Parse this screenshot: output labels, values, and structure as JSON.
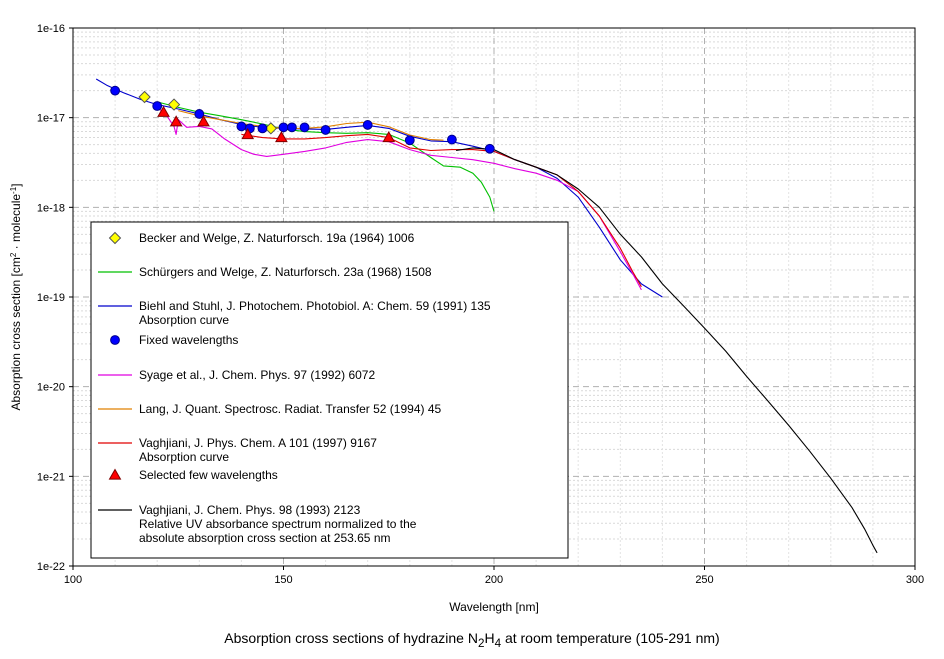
{
  "caption": {
    "prefix": "Absorption cross sections of hydrazine N",
    "sub1": "2",
    "mid": "H",
    "sub2": "4",
    "suffix": " at room temperature (105-291 nm)"
  },
  "chart_data": {
    "type": "line",
    "xlabel": "Wavelength [nm]",
    "ylabel": "Absorption cross section [cm",
    "ylabel_sup1": "2",
    "ylabel_mid": " · molecule",
    "ylabel_sup2": "-1",
    "ylabel_end": "]",
    "xlim": [
      100,
      300
    ],
    "ylim": [
      1e-22,
      1e-16
    ],
    "yscale": "log",
    "grid": true,
    "legend_placement": "lower-left",
    "x_ticks": [
      {
        "value": 100,
        "label": "100"
      },
      {
        "value": 150,
        "label": "150"
      },
      {
        "value": 200,
        "label": "200"
      },
      {
        "value": 250,
        "label": "250"
      },
      {
        "value": 300,
        "label": "300"
      }
    ],
    "y_ticks": [
      {
        "exp": -16,
        "label": "1e-16"
      },
      {
        "exp": -17,
        "label": "1e-17"
      },
      {
        "exp": -18,
        "label": "1e-18"
      },
      {
        "exp": -19,
        "label": "1e-19"
      },
      {
        "exp": -20,
        "label": "1e-20"
      },
      {
        "exp": -21,
        "label": "1e-21"
      },
      {
        "exp": -22,
        "label": "1e-22"
      }
    ],
    "series": [
      {
        "legend": [
          "Becker and Welge, Z. Naturforsch. 19a (1964) 1006"
        ],
        "kind": "markers",
        "marker": "diamond",
        "color": "#ffff00",
        "stroke": "#555555",
        "points": [
          [
            117,
            1.7e-17
          ],
          [
            124,
            1.4e-17
          ],
          [
            147,
            7.6e-18
          ]
        ]
      },
      {
        "legend": [
          "Schürgers and Welge, Z. Naturforsch. 23a (1968) 1508"
        ],
        "kind": "line",
        "color": "#00c000",
        "points": [
          [
            120,
            1.5e-17
          ],
          [
            125,
            1.3e-17
          ],
          [
            130,
            1.15e-17
          ],
          [
            135,
            1.05e-17
          ],
          [
            140,
            9.5e-18
          ],
          [
            145,
            8.5e-18
          ],
          [
            150,
            7.5e-18
          ],
          [
            155,
            7e-18
          ],
          [
            160,
            6.8e-18
          ],
          [
            165,
            6.7e-18
          ],
          [
            170,
            6.8e-18
          ],
          [
            175,
            6.5e-18
          ],
          [
            180,
            5.2e-18
          ],
          [
            185,
            3.6e-18
          ],
          [
            188,
            2.9e-18
          ],
          [
            192,
            2.8e-18
          ],
          [
            195,
            2.4e-18
          ],
          [
            197,
            1.9e-18
          ],
          [
            199,
            1.3e-18
          ],
          [
            200,
            9e-19
          ]
        ]
      },
      {
        "legend": [
          "Biehl and Stuhl, J. Photochem. Photobiol. A: Chem. 59 (1991) 135",
          "Absorption curve"
        ],
        "kind": "line",
        "color": "#0000cc",
        "points": [
          [
            105.5,
            2.7e-17
          ],
          [
            108,
            2.3e-17
          ],
          [
            112,
            1.9e-17
          ],
          [
            116,
            1.6e-17
          ],
          [
            120,
            1.4e-17
          ],
          [
            125,
            1.25e-17
          ],
          [
            130,
            1.1e-17
          ],
          [
            135,
            9.5e-18
          ],
          [
            140,
            8.4e-18
          ],
          [
            145,
            7.8e-18
          ],
          [
            150,
            7.6e-18
          ],
          [
            155,
            7.5e-18
          ],
          [
            160,
            7.4e-18
          ],
          [
            165,
            7.8e-18
          ],
          [
            170,
            8.2e-18
          ],
          [
            175,
            7.6e-18
          ],
          [
            180,
            6.2e-18
          ],
          [
            185,
            5.5e-18
          ],
          [
            190,
            5.4e-18
          ],
          [
            195,
            4.8e-18
          ],
          [
            200,
            4.2e-18
          ],
          [
            205,
            3.4e-18
          ],
          [
            210,
            2.8e-18
          ],
          [
            215,
            2.1e-18
          ],
          [
            220,
            1.3e-18
          ],
          [
            225,
            6e-19
          ],
          [
            230,
            2.6e-19
          ],
          [
            235,
            1.4e-19
          ],
          [
            240,
            1e-19
          ]
        ]
      },
      {
        "legend": [
          "Fixed wavelengths"
        ],
        "kind": "markers",
        "marker": "circle",
        "color": "#0000ff",
        "stroke": "#00008b",
        "points": [
          [
            110,
            2e-17
          ],
          [
            120,
            1.35e-17
          ],
          [
            130,
            1.1e-17
          ],
          [
            140,
            8e-18
          ],
          [
            142,
            7.6e-18
          ],
          [
            145,
            7.6e-18
          ],
          [
            150,
            7.8e-18
          ],
          [
            152,
            7.8e-18
          ],
          [
            155,
            7.8e-18
          ],
          [
            160,
            7.3e-18
          ],
          [
            170,
            8.3e-18
          ],
          [
            180,
            5.6e-18
          ],
          [
            190,
            5.7e-18
          ],
          [
            199,
            4.5e-18
          ]
        ]
      },
      {
        "legend": [
          "Syage et al., J. Chem. Phys. 97 (1992) 6072"
        ],
        "kind": "line",
        "color": "#e000e0",
        "points": [
          [
            120,
            1.3e-17
          ],
          [
            122,
            1.1e-17
          ],
          [
            124,
            8e-18
          ],
          [
            124.5,
            6.5e-18
          ],
          [
            125,
            9.5e-18
          ],
          [
            127,
            7.8e-18
          ],
          [
            130,
            8e-18
          ],
          [
            133,
            7.5e-18
          ],
          [
            136,
            5.8e-18
          ],
          [
            140,
            4.4e-18
          ],
          [
            143,
            3.9e-18
          ],
          [
            146,
            3.7e-18
          ],
          [
            150,
            3.9e-18
          ],
          [
            155,
            4.2e-18
          ],
          [
            160,
            4.6e-18
          ],
          [
            165,
            5.3e-18
          ],
          [
            170,
            5.7e-18
          ],
          [
            175,
            5.4e-18
          ],
          [
            180,
            4.4e-18
          ],
          [
            185,
            3.8e-18
          ],
          [
            190,
            3.6e-18
          ],
          [
            195,
            3.4e-18
          ],
          [
            200,
            3.1e-18
          ],
          [
            205,
            2.7e-18
          ],
          [
            210,
            2.4e-18
          ],
          [
            215,
            2e-18
          ],
          [
            220,
            1.5e-18
          ],
          [
            225,
            8e-19
          ],
          [
            230,
            3.2e-19
          ],
          [
            233,
            1.8e-19
          ],
          [
            235,
            1.2e-19
          ]
        ]
      },
      {
        "legend": [
          "Lang, J. Quant. Spectrosc. Radiat. Transfer 52 (1994) 45"
        ],
        "kind": "line",
        "color": "#e08000",
        "points": [
          [
            125,
            1.2e-17
          ],
          [
            130,
            1.05e-17
          ],
          [
            135,
            9.5e-18
          ],
          [
            140,
            8.6e-18
          ],
          [
            145,
            8e-18
          ],
          [
            150,
            7.6e-18
          ],
          [
            155,
            7.6e-18
          ],
          [
            160,
            7.9e-18
          ],
          [
            165,
            8.6e-18
          ],
          [
            170,
            8.9e-18
          ],
          [
            175,
            7.9e-18
          ],
          [
            180,
            6.4e-18
          ],
          [
            185,
            5.7e-18
          ],
          [
            188,
            5.6e-18
          ]
        ]
      },
      {
        "legend": [
          "Vaghjiani, J. Phys. Chem. A 101 (1997) 9167",
          "Absorption curve"
        ],
        "kind": "line",
        "color": "#e00000",
        "points": [
          [
            140,
            6.5e-18
          ],
          [
            145,
            6e-18
          ],
          [
            150,
            5.8e-18
          ],
          [
            155,
            5.8e-18
          ],
          [
            160,
            6e-18
          ],
          [
            165,
            6.3e-18
          ],
          [
            170,
            6.5e-18
          ],
          [
            175,
            6e-18
          ],
          [
            180,
            4.6e-18
          ],
          [
            185,
            4.3e-18
          ],
          [
            190,
            4.4e-18
          ],
          [
            195,
            4.4e-18
          ],
          [
            200,
            4.2e-18
          ],
          [
            205,
            3.4e-18
          ],
          [
            210,
            2.8e-18
          ],
          [
            215,
            2.3e-18
          ],
          [
            220,
            1.5e-18
          ],
          [
            225,
            8e-19
          ],
          [
            230,
            3.5e-19
          ],
          [
            233,
            1.9e-19
          ],
          [
            235,
            1.3e-19
          ]
        ]
      },
      {
        "legend": [
          "Selected few wavelengths"
        ],
        "kind": "markers",
        "marker": "triangle",
        "color": "#ff0000",
        "stroke": "#800000",
        "points": [
          [
            121.5,
            1.15e-17
          ],
          [
            124.5,
            9e-18
          ],
          [
            131,
            9e-18
          ],
          [
            141.5,
            6.5e-18
          ],
          [
            149.5,
            6e-18
          ],
          [
            175,
            6e-18
          ]
        ]
      },
      {
        "legend": [
          "Vaghjiani, J. Chem. Phys. 98 (1993) 2123",
          "Relative UV absorbance spectrum normalized to the",
          "absolute absorption cross section at 253.65 nm"
        ],
        "kind": "line",
        "color": "#000000",
        "points": [
          [
            191,
            4.3e-18
          ],
          [
            195,
            4.6e-18
          ],
          [
            200,
            4.4e-18
          ],
          [
            205,
            3.4e-18
          ],
          [
            210,
            2.8e-18
          ],
          [
            215,
            2.3e-18
          ],
          [
            220,
            1.6e-18
          ],
          [
            225,
            1e-18
          ],
          [
            230,
            5e-19
          ],
          [
            235,
            2.8e-19
          ],
          [
            240,
            1.4e-19
          ],
          [
            245,
            8e-20
          ],
          [
            250,
            4.5e-20
          ],
          [
            255,
            2.5e-20
          ],
          [
            260,
            1.3e-20
          ],
          [
            265,
            7e-21
          ],
          [
            270,
            3.7e-21
          ],
          [
            275,
            1.9e-21
          ],
          [
            280,
            9.5e-22
          ],
          [
            285,
            4.5e-22
          ],
          [
            288,
            2.6e-22
          ],
          [
            290,
            1.7e-22
          ],
          [
            291,
            1.4e-22
          ]
        ]
      }
    ]
  }
}
